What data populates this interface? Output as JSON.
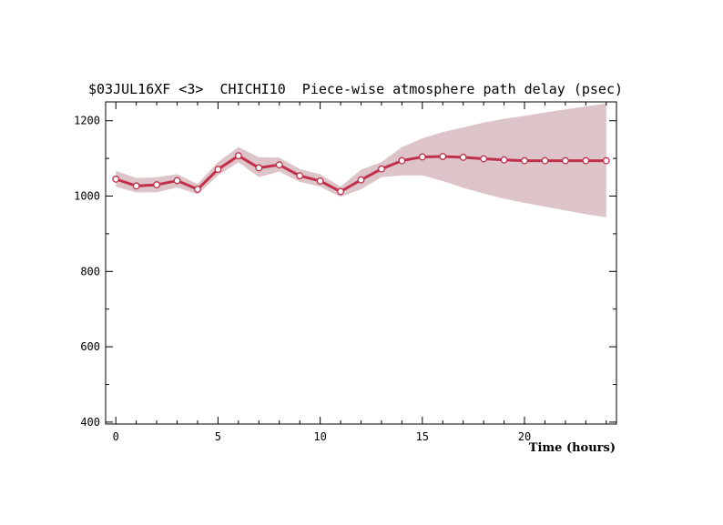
{
  "chart_data": {
    "type": "line",
    "title": "$03JUL16XF <3>  CHICHI10  Piece-wise atmosphere path delay (psec)",
    "xlabel": "Time (hours)",
    "ylabel": "",
    "xlim": [
      -0.5,
      24.5
    ],
    "ylim": [
      395,
      1250
    ],
    "x_major_ticks": [
      0,
      5,
      10,
      15,
      20
    ],
    "x_tick_labels": [
      "0",
      "5",
      "10",
      "15",
      "20"
    ],
    "y_major_ticks": [
      400,
      600,
      800,
      1000,
      1200
    ],
    "y_tick_labels": [
      "400",
      "600",
      "800",
      "1000",
      "1200"
    ],
    "grid": false,
    "colors": {
      "line": "#c0304a",
      "band": "#dcc4c9",
      "marker_fill": "#ffffff"
    },
    "series": [
      {
        "x": [
          0,
          1,
          2,
          3,
          4,
          5,
          6,
          7,
          8,
          9,
          10,
          11,
          12,
          13,
          14,
          15,
          16,
          17,
          18,
          19,
          20,
          21,
          22,
          23,
          24
        ],
        "values": [
          1045,
          1027,
          1030,
          1041,
          1018,
          1071,
          1107,
          1075,
          1083,
          1054,
          1040,
          1012,
          1043,
          1072,
          1094,
          1104,
          1105,
          1103,
          1099,
          1096,
          1094,
          1094,
          1094,
          1094,
          1094
        ],
        "upper": [
          1067,
          1048,
          1050,
          1058,
          1032,
          1090,
          1130,
          1103,
          1102,
          1072,
          1058,
          1025,
          1070,
          1090,
          1130,
          1153,
          1170,
          1182,
          1195,
          1205,
          1213,
          1222,
          1230,
          1238,
          1246
        ],
        "lower": [
          1025,
          1010,
          1010,
          1023,
          1005,
          1055,
          1090,
          1050,
          1065,
          1038,
          1025,
          998,
          1018,
          1050,
          1055,
          1055,
          1040,
          1022,
          1007,
          993,
          982,
          972,
          962,
          952,
          944
        ]
      }
    ]
  }
}
